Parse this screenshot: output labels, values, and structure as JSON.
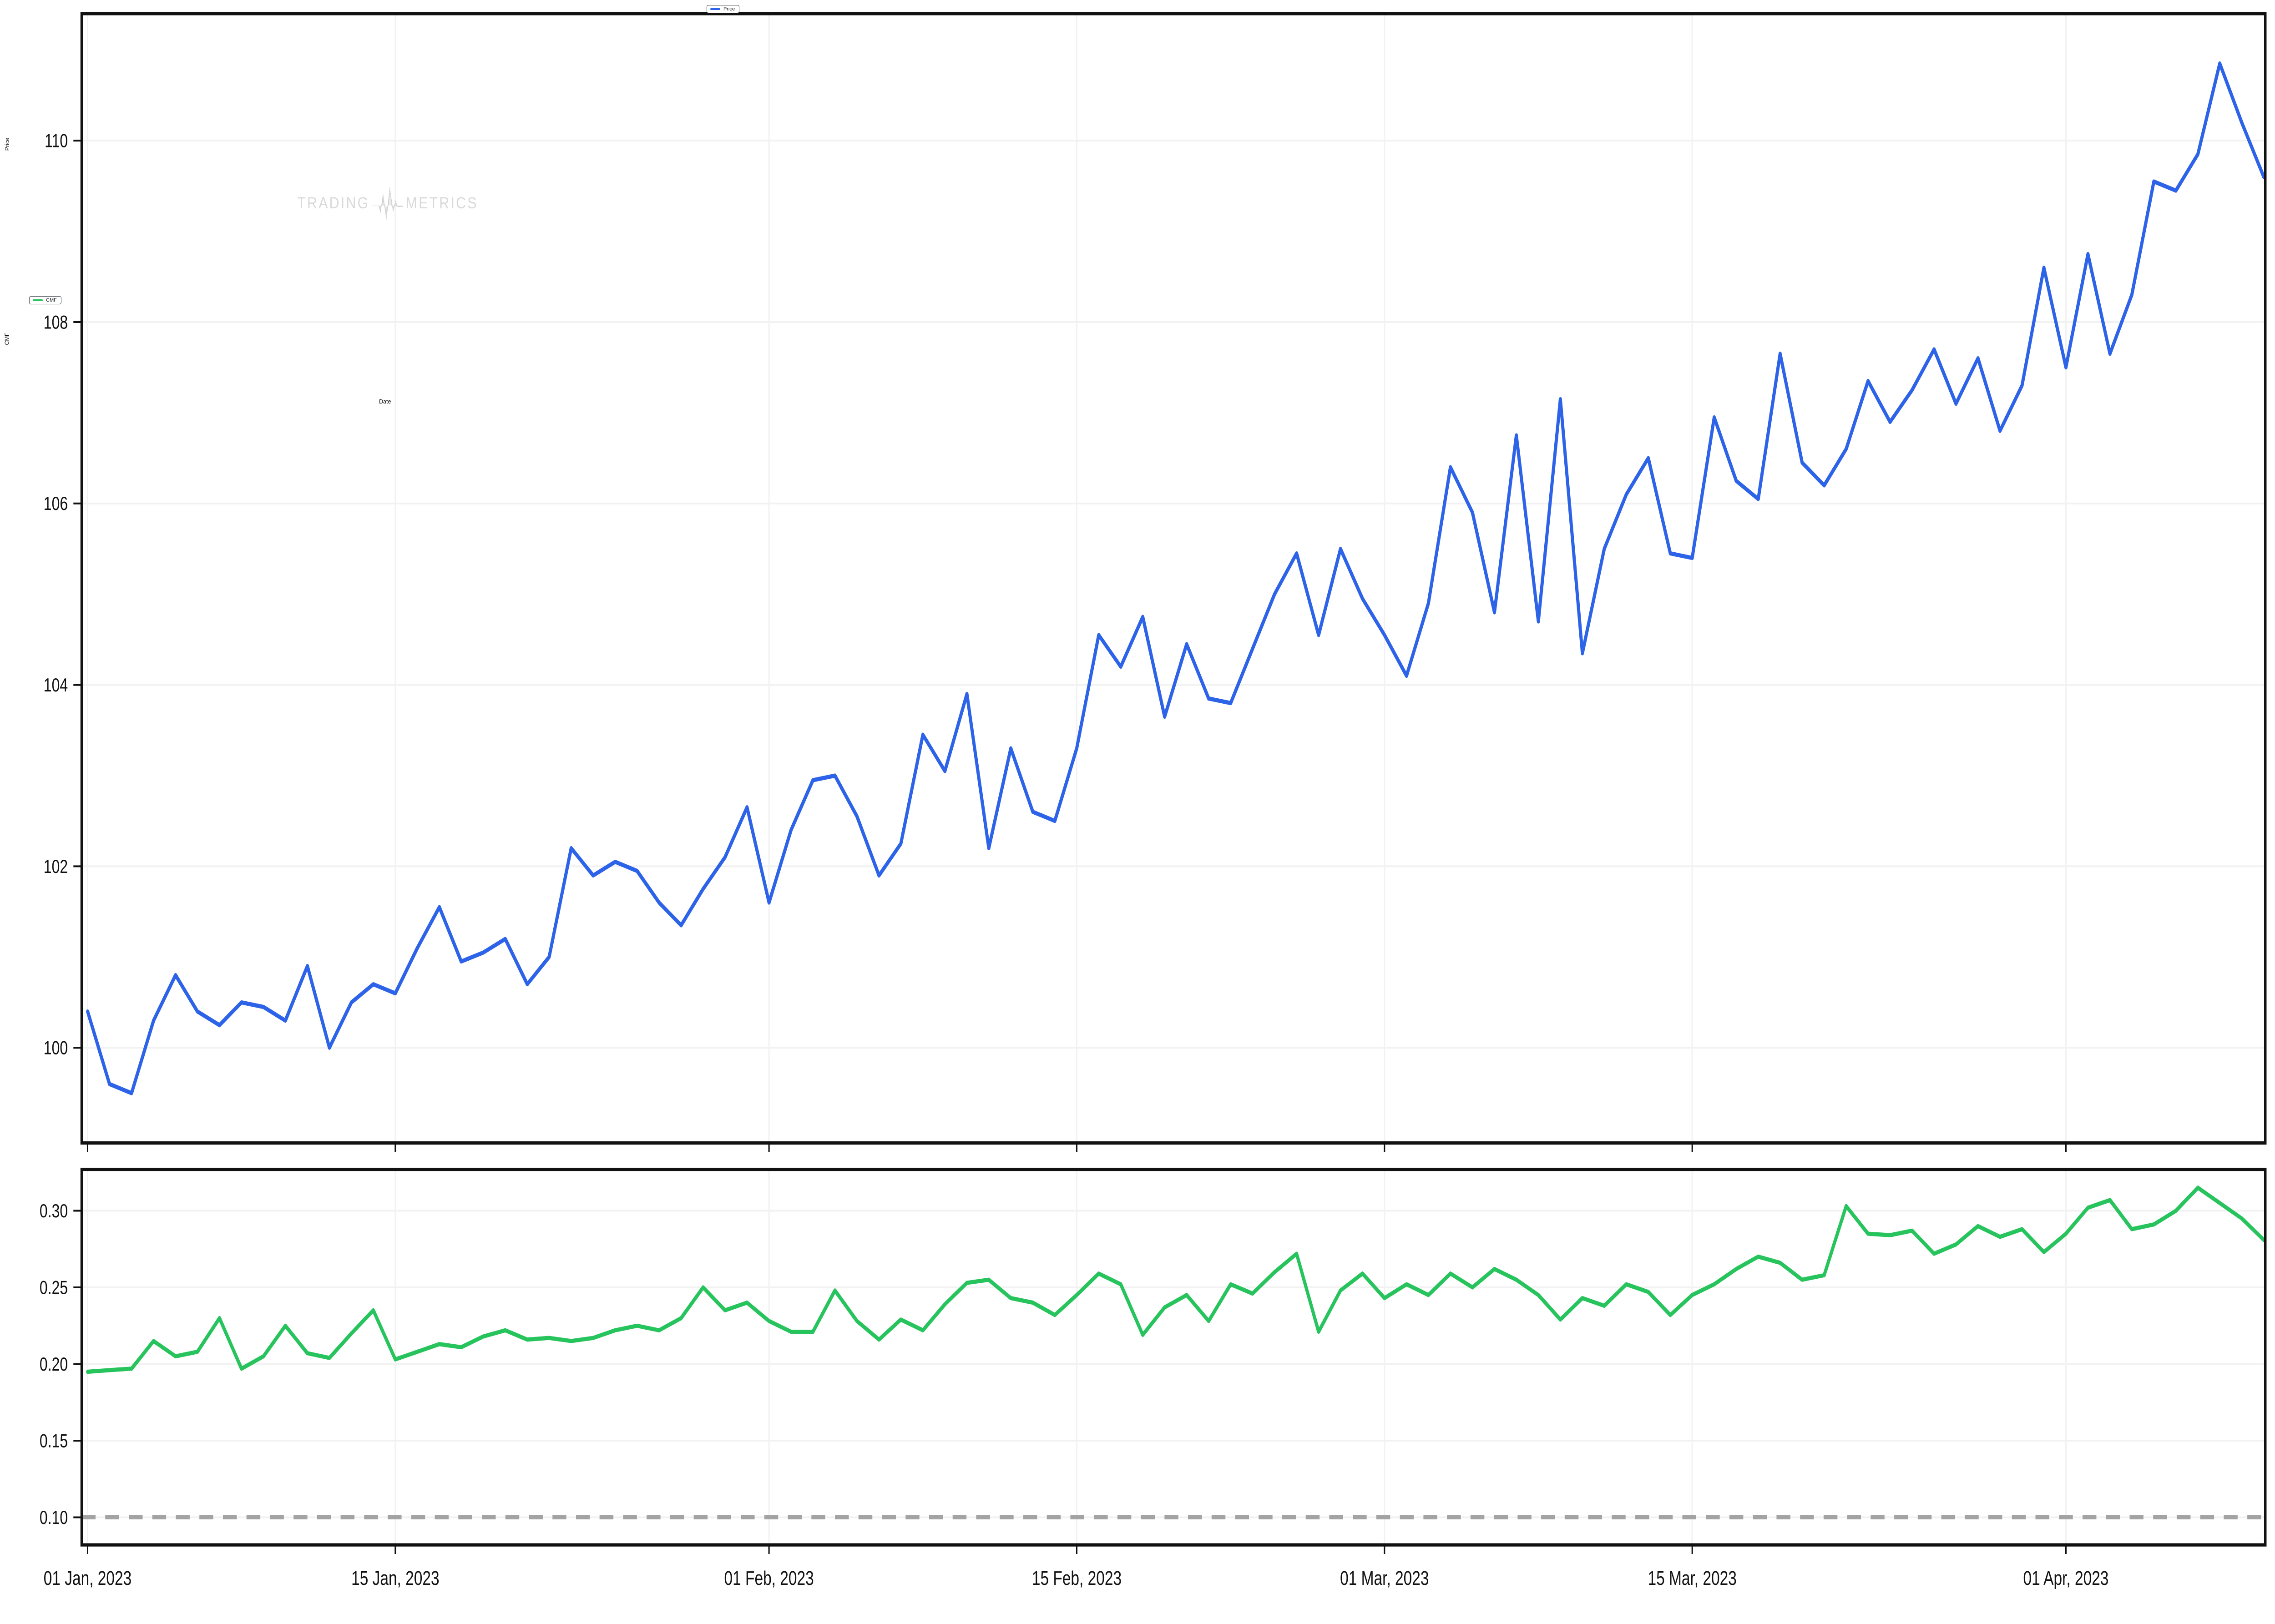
{
  "watermark": {
    "left_word": "TRADING",
    "right_word": "METRICS"
  },
  "panels": {
    "price": {
      "axis_title": "Price",
      "legend_label": "Price",
      "line_color": "#2d63e8"
    },
    "cmf": {
      "axis_title": "CMF",
      "legend_label": "CMF",
      "line_color": "#27c45d"
    }
  },
  "x_axis": {
    "title": "Date",
    "tick_labels": [
      "01 Jan, 2023",
      "15 Jan, 2023",
      "01 Feb, 2023",
      "15 Feb, 2023",
      "01 Mar, 2023",
      "15 Mar, 2023",
      "01 Apr, 2023"
    ],
    "tick_day_offsets": [
      0,
      14,
      31,
      45,
      59,
      73,
      90
    ],
    "total_days": 100
  },
  "chart_data": [
    {
      "type": "line",
      "title": "",
      "xlabel": "Date",
      "ylabel": "Price",
      "legend": "Price",
      "legend_position": "top-right",
      "grid": true,
      "color": "#2d63e8",
      "x_start": "01 Jan, 2023",
      "x_end": "10 Apr, 2023",
      "y_ticks": [
        100,
        102,
        104,
        106,
        108,
        110
      ],
      "ylim": [
        98.95,
        111.4
      ],
      "values": [
        100.4,
        99.6,
        99.5,
        100.3,
        100.8,
        100.4,
        100.25,
        100.5,
        100.45,
        100.3,
        100.9,
        100.0,
        100.5,
        100.7,
        100.6,
        101.1,
        101.55,
        100.95,
        101.05,
        101.2,
        100.7,
        101.0,
        102.2,
        101.9,
        102.05,
        101.95,
        101.6,
        101.35,
        101.75,
        102.1,
        102.65,
        101.6,
        102.4,
        102.95,
        103.0,
        102.55,
        101.9,
        102.25,
        103.45,
        103.05,
        103.9,
        102.2,
        103.3,
        102.6,
        102.5,
        103.3,
        104.55,
        104.2,
        104.75,
        103.65,
        104.45,
        103.85,
        103.8,
        104.4,
        105.0,
        105.45,
        104.55,
        105.5,
        104.95,
        104.55,
        104.1,
        104.9,
        106.4,
        105.9,
        104.8,
        106.75,
        104.7,
        107.15,
        104.35,
        105.5,
        106.1,
        106.5,
        105.45,
        105.4,
        106.95,
        106.25,
        106.05,
        107.65,
        106.45,
        106.2,
        106.6,
        107.35,
        106.9,
        107.25,
        107.7,
        107.1,
        107.6,
        106.8,
        107.3,
        108.6,
        107.5,
        108.75,
        107.65,
        108.3,
        109.55,
        109.45,
        109.85,
        110.85,
        110.2,
        109.6
      ]
    },
    {
      "type": "line",
      "title": "",
      "xlabel": "Date",
      "ylabel": "CMF",
      "legend": "CMF",
      "legend_position": "top-left",
      "grid": true,
      "color": "#27c45d",
      "x_start": "01 Jan, 2023",
      "x_end": "10 Apr, 2023",
      "y_ticks": [
        0.1,
        0.15,
        0.2,
        0.25,
        0.3
      ],
      "ylim": [
        0.082,
        0.327
      ],
      "reference_line": {
        "value": 0.1,
        "style": "dashed",
        "color": "#a3a3a3"
      },
      "values": [
        0.195,
        0.196,
        0.197,
        0.215,
        0.205,
        0.208,
        0.23,
        0.197,
        0.205,
        0.225,
        0.207,
        0.204,
        0.22,
        0.235,
        0.203,
        0.208,
        0.213,
        0.211,
        0.218,
        0.222,
        0.216,
        0.217,
        0.215,
        0.217,
        0.222,
        0.225,
        0.222,
        0.23,
        0.25,
        0.235,
        0.24,
        0.228,
        0.221,
        0.221,
        0.248,
        0.228,
        0.216,
        0.229,
        0.222,
        0.239,
        0.253,
        0.255,
        0.243,
        0.24,
        0.232,
        0.245,
        0.259,
        0.252,
        0.219,
        0.237,
        0.245,
        0.228,
        0.252,
        0.246,
        0.26,
        0.272,
        0.221,
        0.248,
        0.259,
        0.243,
        0.252,
        0.245,
        0.259,
        0.25,
        0.262,
        0.255,
        0.245,
        0.229,
        0.243,
        0.238,
        0.252,
        0.247,
        0.232,
        0.245,
        0.252,
        0.262,
        0.27,
        0.266,
        0.255,
        0.258,
        0.303,
        0.285,
        0.284,
        0.287,
        0.272,
        0.278,
        0.29,
        0.283,
        0.288,
        0.273,
        0.285,
        0.302,
        0.307,
        0.288,
        0.291,
        0.3,
        0.315,
        0.305,
        0.295,
        0.281
      ]
    }
  ]
}
